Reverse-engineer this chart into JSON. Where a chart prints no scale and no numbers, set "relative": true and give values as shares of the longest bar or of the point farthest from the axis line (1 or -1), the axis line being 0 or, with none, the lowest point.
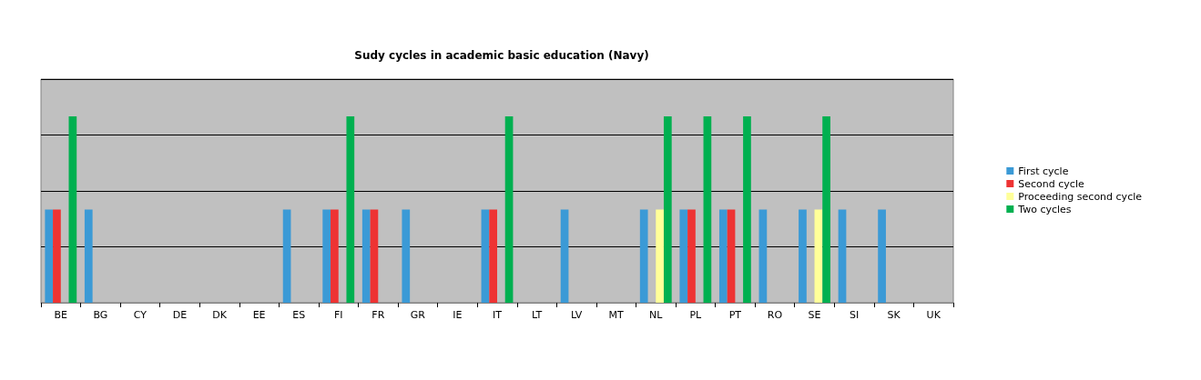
{
  "chart_data": {
    "type": "bar",
    "title": "Sudy cycles in academic basic education (Navy)",
    "relative": true,
    "grid": "y",
    "legend": "right",
    "categories": [
      "BE",
      "BG",
      "CY",
      "DE",
      "DK",
      "EE",
      "ES",
      "FI",
      "FR",
      "GR",
      "IE",
      "IT",
      "LT",
      "LV",
      "MT",
      "NL",
      "PL",
      "PT",
      "RO",
      "SE",
      "SI",
      "SK",
      "UK"
    ],
    "series": [
      {
        "name": "First cycle",
        "color": "#3b9ad6",
        "values": [
          0.5,
          0.5,
          null,
          null,
          null,
          null,
          0.5,
          0.5,
          0.5,
          0.5,
          null,
          0.5,
          null,
          0.5,
          null,
          0.5,
          0.5,
          0.5,
          0.5,
          0.5,
          0.5,
          0.5,
          null
        ]
      },
      {
        "name": "Second cycle",
        "color": "#ee3333",
        "values": [
          0.5,
          null,
          null,
          null,
          null,
          null,
          null,
          0.5,
          0.5,
          null,
          null,
          0.5,
          null,
          null,
          null,
          null,
          0.5,
          0.5,
          null,
          null,
          null,
          null,
          null
        ]
      },
      {
        "name": "Proceeding second cycle",
        "color": "#ffff99",
        "values": [
          null,
          null,
          null,
          null,
          null,
          null,
          null,
          null,
          null,
          null,
          null,
          null,
          null,
          null,
          null,
          0.5,
          null,
          null,
          null,
          0.5,
          null,
          null,
          null
        ]
      },
      {
        "name": "Two cycles",
        "color": "#00b050",
        "values": [
          1,
          null,
          null,
          null,
          null,
          null,
          null,
          1,
          null,
          null,
          null,
          1,
          null,
          null,
          null,
          1,
          1,
          1,
          null,
          1,
          null,
          null,
          null
        ]
      }
    ]
  }
}
